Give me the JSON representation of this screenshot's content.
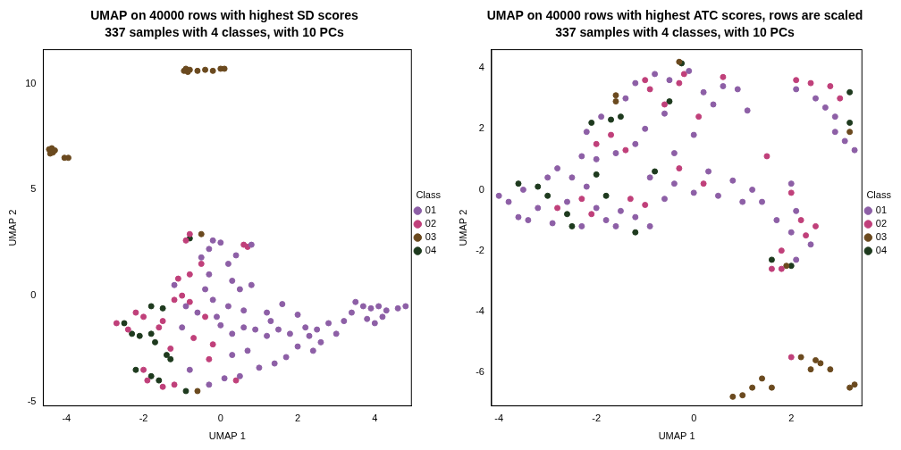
{
  "chart_data": [
    {
      "type": "scatter",
      "title": "UMAP on 40000 rows with highest SD scores",
      "subtitle": "337 samples with 4 classes, with 10 PCs",
      "x_label": "UMAP 1",
      "y_label": "UMAP 2",
      "legend_title": "Class",
      "legend": "right",
      "grid": false,
      "marker": "circle",
      "xlim": [
        -4.6,
        4.95
      ],
      "xticks": [
        -4,
        -2,
        0,
        2,
        4
      ],
      "ylim": [
        -5.2,
        11.6
      ],
      "yticks": [
        -5,
        0,
        5,
        10
      ],
      "series": [
        {
          "name": "01",
          "color": "#8d5fa6",
          "values": [
            [
              3.5,
              -0.3
            ],
            [
              3.7,
              -0.5
            ],
            [
              3.9,
              -0.6
            ],
            [
              4.1,
              -0.5
            ],
            [
              4.3,
              -0.7
            ],
            [
              4.6,
              -0.6
            ],
            [
              4.8,
              -0.5
            ],
            [
              4.2,
              -1.0
            ],
            [
              3.8,
              -1.1
            ],
            [
              3.4,
              -0.8
            ],
            [
              4.0,
              -1.3
            ],
            [
              3.2,
              -1.2
            ],
            [
              2.8,
              -1.3
            ],
            [
              2.5,
              -1.6
            ],
            [
              2.2,
              -1.5
            ],
            [
              1.8,
              -1.8
            ],
            [
              1.5,
              -1.6
            ],
            [
              1.2,
              -1.9
            ],
            [
              0.9,
              -1.6
            ],
            [
              0.6,
              -1.5
            ],
            [
              0.3,
              -1.8
            ],
            [
              0.0,
              -1.4
            ],
            [
              2.6,
              -2.2
            ],
            [
              2.4,
              -2.6
            ],
            [
              2.0,
              -2.4
            ],
            [
              1.7,
              -2.9
            ],
            [
              1.4,
              -3.2
            ],
            [
              1.0,
              -3.4
            ],
            [
              0.5,
              -3.8
            ],
            [
              0.1,
              -3.9
            ],
            [
              -0.3,
              -4.2
            ],
            [
              0.3,
              0.7
            ],
            [
              0.5,
              0.3
            ],
            [
              0.8,
              0.5
            ],
            [
              0.2,
              -0.5
            ],
            [
              -0.2,
              -0.2
            ],
            [
              -0.4,
              0.3
            ],
            [
              -0.3,
              1.0
            ],
            [
              -0.5,
              1.8
            ],
            [
              -0.3,
              2.2
            ],
            [
              0.0,
              2.5
            ],
            [
              -0.2,
              2.6
            ],
            [
              0.4,
              1.9
            ],
            [
              0.8,
              2.4
            ],
            [
              0.2,
              1.5
            ],
            [
              -0.6,
              -0.8
            ],
            [
              -0.1,
              -1.0
            ],
            [
              0.6,
              -0.7
            ],
            [
              1.2,
              -0.8
            ],
            [
              1.6,
              -0.4
            ],
            [
              2.0,
              -0.9
            ],
            [
              0.7,
              -2.6
            ],
            [
              -0.8,
              -3.5
            ],
            [
              -1.0,
              -1.5
            ],
            [
              0.3,
              -2.8
            ],
            [
              1.3,
              -1.2
            ],
            [
              3.0,
              -1.8
            ],
            [
              2.3,
              -1.9
            ],
            [
              -0.9,
              -0.5
            ],
            [
              -1.2,
              0.5
            ]
          ]
        },
        {
          "name": "02",
          "color": "#c0407a",
          "values": [
            [
              -2.7,
              -1.3
            ],
            [
              -2.4,
              -1.6
            ],
            [
              -2.0,
              -1.0
            ],
            [
              -1.5,
              -1.2
            ],
            [
              -1.2,
              -0.2
            ],
            [
              -1.0,
              0.0
            ],
            [
              -0.8,
              -0.3
            ],
            [
              -1.1,
              0.8
            ],
            [
              -0.8,
              1.0
            ],
            [
              -0.9,
              2.6
            ],
            [
              -0.8,
              2.9
            ],
            [
              -0.5,
              1.5
            ],
            [
              -0.4,
              -1.0
            ],
            [
              -1.3,
              -2.5
            ],
            [
              -2.0,
              -3.5
            ],
            [
              -1.9,
              -4.0
            ],
            [
              -1.5,
              -4.3
            ],
            [
              -1.2,
              -4.2
            ],
            [
              0.6,
              2.4
            ],
            [
              0.7,
              2.3
            ],
            [
              -0.7,
              -2.0
            ],
            [
              -0.3,
              -3.0
            ],
            [
              -2.2,
              -0.8
            ],
            [
              -1.6,
              -1.5
            ],
            [
              0.4,
              -4.0
            ],
            [
              -0.2,
              -2.3
            ]
          ]
        },
        {
          "name": "03",
          "color": "#6b4a1f",
          "values": [
            [
              -4.45,
              6.9
            ],
            [
              -4.4,
              6.8
            ],
            [
              -4.42,
              6.7
            ],
            [
              -4.38,
              6.95
            ],
            [
              -4.35,
              6.75
            ],
            [
              -4.3,
              6.85
            ],
            [
              -4.05,
              6.5
            ],
            [
              -3.95,
              6.5
            ],
            [
              -0.95,
              10.6
            ],
            [
              -0.9,
              10.7
            ],
            [
              -0.85,
              10.55
            ],
            [
              -0.8,
              10.65
            ],
            [
              -0.6,
              10.6
            ],
            [
              -0.4,
              10.65
            ],
            [
              -0.2,
              10.6
            ],
            [
              0.0,
              10.7
            ],
            [
              0.1,
              10.7
            ],
            [
              -0.5,
              2.9
            ],
            [
              -0.6,
              -4.5
            ]
          ]
        },
        {
          "name": "04",
          "color": "#1e3a1e",
          "values": [
            [
              -2.5,
              -1.3
            ],
            [
              -2.3,
              -1.8
            ],
            [
              -1.8,
              -0.5
            ],
            [
              -1.5,
              -0.6
            ],
            [
              -1.8,
              -1.8
            ],
            [
              -1.7,
              -2.2
            ],
            [
              -1.6,
              -4.0
            ],
            [
              -1.8,
              -3.8
            ],
            [
              -2.2,
              -3.5
            ],
            [
              -0.8,
              2.7
            ],
            [
              -0.9,
              -4.5
            ],
            [
              -1.4,
              -2.8
            ],
            [
              -2.1,
              -1.9
            ],
            [
              -1.3,
              -3.0
            ]
          ]
        }
      ]
    },
    {
      "type": "scatter",
      "title": "UMAP on 40000 rows with highest ATC scores, rows are scaled",
      "subtitle": "337 samples with 4 classes, with 10 PCs",
      "x_label": "UMAP 1",
      "y_label": "UMAP 2",
      "legend_title": "Class",
      "legend": "right",
      "grid": false,
      "marker": "circle",
      "xlim": [
        -4.15,
        3.45
      ],
      "xticks": [
        -4,
        -2,
        0,
        2
      ],
      "ylim": [
        -7.1,
        4.6
      ],
      "yticks": [
        -6,
        -4,
        -2,
        0,
        2,
        4
      ],
      "series": [
        {
          "name": "01",
          "color": "#8d5fa6",
          "values": [
            [
              -4.0,
              -0.2
            ],
            [
              -3.8,
              -0.4
            ],
            [
              -3.6,
              -0.9
            ],
            [
              -3.4,
              -1.0
            ],
            [
              -3.2,
              -0.6
            ],
            [
              -3.5,
              0.0
            ],
            [
              -3.0,
              0.4
            ],
            [
              -2.8,
              0.7
            ],
            [
              -2.5,
              0.4
            ],
            [
              -2.2,
              0.1
            ],
            [
              -2.6,
              -0.4
            ],
            [
              -2.9,
              -1.1
            ],
            [
              -2.3,
              -1.2
            ],
            [
              -2.0,
              -0.6
            ],
            [
              -1.8,
              -1.0
            ],
            [
              -1.5,
              -0.7
            ],
            [
              -1.2,
              -0.9
            ],
            [
              -0.9,
              -1.2
            ],
            [
              -0.6,
              -0.3
            ],
            [
              -0.4,
              0.2
            ],
            [
              0.0,
              -0.1
            ],
            [
              0.3,
              0.6
            ],
            [
              0.5,
              -0.2
            ],
            [
              0.8,
              0.3
            ],
            [
              1.0,
              -0.4
            ],
            [
              1.2,
              0.0
            ],
            [
              1.4,
              -0.4
            ],
            [
              -2.3,
              1.1
            ],
            [
              -2.0,
              1.0
            ],
            [
              -1.6,
              1.2
            ],
            [
              -1.2,
              1.5
            ],
            [
              -1.0,
              2.0
            ],
            [
              -2.2,
              1.9
            ],
            [
              -1.9,
              2.4
            ],
            [
              -1.4,
              3.0
            ],
            [
              -1.2,
              3.5
            ],
            [
              -0.8,
              3.8
            ],
            [
              -0.5,
              3.6
            ],
            [
              -0.1,
              3.9
            ],
            [
              0.2,
              3.2
            ],
            [
              0.4,
              2.8
            ],
            [
              0.6,
              3.4
            ],
            [
              0.9,
              3.3
            ],
            [
              1.1,
              2.6
            ],
            [
              -0.6,
              2.5
            ],
            [
              0.0,
              1.8
            ],
            [
              -0.4,
              1.2
            ],
            [
              2.1,
              3.3
            ],
            [
              2.5,
              3.0
            ],
            [
              2.7,
              2.7
            ],
            [
              2.9,
              2.4
            ],
            [
              3.1,
              1.6
            ],
            [
              3.3,
              1.3
            ],
            [
              2.9,
              1.9
            ],
            [
              2.1,
              -0.7
            ],
            [
              2.0,
              -1.4
            ],
            [
              2.4,
              -1.8
            ],
            [
              2.1,
              -2.3
            ],
            [
              1.7,
              -1.0
            ],
            [
              2.0,
              0.2
            ],
            [
              -1.6,
              -1.2
            ],
            [
              -0.9,
              0.4
            ]
          ]
        },
        {
          "name": "02",
          "color": "#c0407a",
          "values": [
            [
              -1.0,
              3.6
            ],
            [
              -0.9,
              3.3
            ],
            [
              -0.6,
              2.8
            ],
            [
              -2.0,
              1.5
            ],
            [
              -1.7,
              1.8
            ],
            [
              -1.4,
              1.3
            ],
            [
              -0.2,
              3.8
            ],
            [
              -0.3,
              3.5
            ],
            [
              0.1,
              2.4
            ],
            [
              0.6,
              3.7
            ],
            [
              2.1,
              3.6
            ],
            [
              2.4,
              3.5
            ],
            [
              2.8,
              3.4
            ],
            [
              3.0,
              3.0
            ],
            [
              1.5,
              1.1
            ],
            [
              2.0,
              -0.1
            ],
            [
              2.2,
              -1.0
            ],
            [
              2.3,
              -1.5
            ],
            [
              1.8,
              -2.0
            ],
            [
              1.8,
              -2.6
            ],
            [
              1.6,
              -2.6
            ],
            [
              2.5,
              -1.2
            ],
            [
              -2.3,
              -0.3
            ],
            [
              -2.1,
              -0.8
            ],
            [
              -1.0,
              -0.5
            ],
            [
              -1.3,
              -0.3
            ],
            [
              -0.3,
              0.7
            ],
            [
              0.2,
              0.2
            ],
            [
              2.0,
              -5.5
            ],
            [
              -2.8,
              -0.6
            ]
          ]
        },
        {
          "name": "03",
          "color": "#6b4a1f",
          "values": [
            [
              0.8,
              -6.8
            ],
            [
              1.0,
              -6.75
            ],
            [
              1.2,
              -6.5
            ],
            [
              1.4,
              -6.2
            ],
            [
              1.6,
              -6.5
            ],
            [
              2.2,
              -5.5
            ],
            [
              2.4,
              -5.9
            ],
            [
              2.6,
              -5.7
            ],
            [
              2.8,
              -5.9
            ],
            [
              3.2,
              -6.5
            ],
            [
              3.3,
              -6.4
            ],
            [
              2.5,
              -5.6
            ],
            [
              -1.6,
              3.1
            ],
            [
              -0.3,
              4.2
            ],
            [
              1.9,
              -2.5
            ],
            [
              3.2,
              1.9
            ],
            [
              -1.6,
              2.9
            ]
          ]
        },
        {
          "name": "04",
          "color": "#1e3a1e",
          "values": [
            [
              -3.6,
              0.2
            ],
            [
              -3.2,
              0.1
            ],
            [
              -3.0,
              -0.2
            ],
            [
              -2.6,
              -0.8
            ],
            [
              -2.5,
              -1.2
            ],
            [
              -2.0,
              0.5
            ],
            [
              -1.8,
              -0.2
            ],
            [
              -1.7,
              2.3
            ],
            [
              -1.5,
              2.4
            ],
            [
              -1.2,
              -1.4
            ],
            [
              -0.8,
              0.6
            ],
            [
              -0.25,
              4.15
            ],
            [
              -0.5,
              2.9
            ],
            [
              1.6,
              -2.3
            ],
            [
              2.0,
              -2.5
            ],
            [
              3.2,
              2.2
            ],
            [
              3.2,
              3.2
            ],
            [
              -2.1,
              2.2
            ]
          ]
        }
      ]
    }
  ]
}
